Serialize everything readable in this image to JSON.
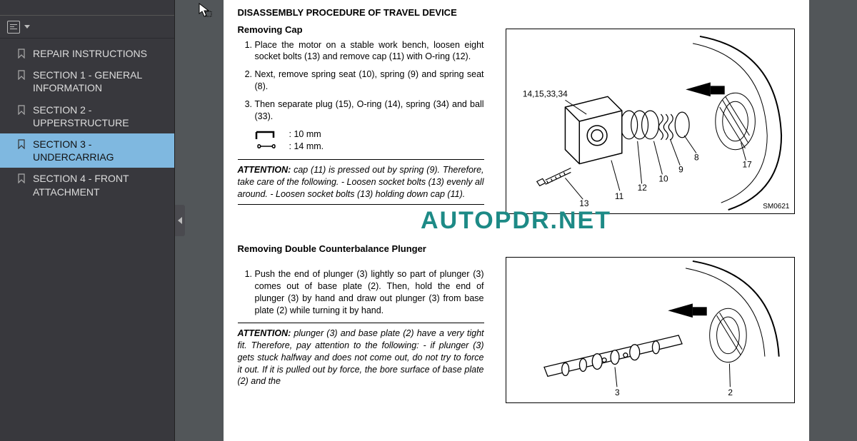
{
  "sidebar": {
    "items": [
      {
        "label": "REPAIR INSTRUCTIONS",
        "selected": false
      },
      {
        "label": "SECTION 1 - GENERAL INFORMATION",
        "selected": false
      },
      {
        "label": "SECTION 2 - UPPERSTRUCTURE",
        "selected": false
      },
      {
        "label": "SECTION 3 - UNDERCARRIAG",
        "selected": true
      },
      {
        "label": "SECTION 4 - FRONT ATTACHMENT",
        "selected": false
      }
    ]
  },
  "page": {
    "heading_main": "DISASSEMBLY PROCEDURE OF TRAVEL DEVICE",
    "section1_title": "Removing Cap",
    "step1": "Place the motor on a stable work bench, loosen eight socket bolts (13) and remove cap (11) with O-ring (12).",
    "step2": "Next, remove spring seat (10), spring (9) and spring seat (8).",
    "step3": "Then separate plug (15), O-ring (14), spring (34) and ball (33).",
    "tool_spec1": ": 10 mm",
    "tool_spec2": ": 14 mm.",
    "attn1_label": "ATTENTION:",
    "attn1_body": " cap (11) is pressed out by spring (9). Therefore, take care of the following.\n- Loosen socket bolts (13) evenly all around.\n- Loosen socket bolts (13) holding down cap (11).",
    "section2_title": "Removing Double Counterbalance Plunger",
    "step2_1": "Push the end of plunger (3) lightly so part of plunger (3) comes out of base plate (2). Then, hold the end of plunger (3) by hand and draw out plunger (3) from base plate (2) while turning it by hand.",
    "attn2_label": "ATTENTION:",
    "attn2_body": " plunger (3) and base plate (2) have a very tight fit. Therefore, pay attention to the following:\n- if plunger (3) gets stuck halfway and does not come out, do not try to force it out. If it is pulled out by force, the bore surface of base plate (2) and the",
    "fig1": {
      "callout_main": "14,15,33,34",
      "callouts": [
        "8",
        "9",
        "10",
        "11",
        "12",
        "13",
        "17"
      ],
      "code": "SM0621"
    },
    "fig2": {
      "callouts": [
        "2",
        "3"
      ]
    },
    "watermark": "AUTOPDR.NET"
  },
  "colors": {
    "sidebar_bg": "#38383d",
    "sidebar_selected": "#7fb8e0",
    "page_bg": "#ffffff",
    "viewer_bg": "#525659",
    "watermark": "#1d8a86"
  }
}
